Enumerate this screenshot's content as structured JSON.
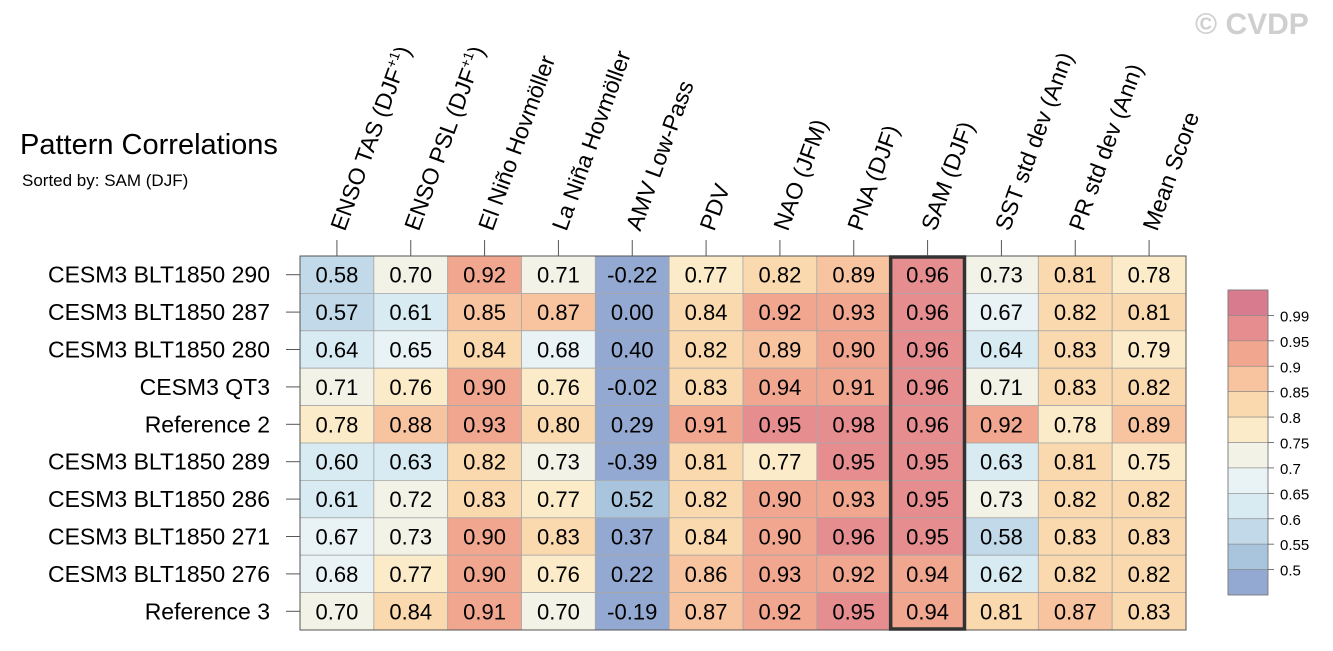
{
  "title": "Pattern Correlations",
  "subtitle": "Sorted by: SAM (DJF)",
  "watermark": "© CVDP",
  "chart_data": {
    "type": "heatmap",
    "columns": [
      "ENSO TAS (DJF+1)",
      "ENSO PSL (DJF+1)",
      "El Niño Hovmöller",
      "La Niña Hovmöller",
      "AMV Low-Pass",
      "PDV",
      "NAO (JFM)",
      "PNA (DJF)",
      "SAM (DJF)",
      "SST std dev (Ann)",
      "PR std dev (Ann)",
      "Mean Score"
    ],
    "highlighted_column": "SAM (DJF)",
    "rows": [
      {
        "label": "CESM3 BLT1850 290",
        "values": [
          "0.58",
          "0.70",
          "0.92",
          "0.71",
          "-0.22",
          "0.77",
          "0.82",
          "0.89",
          "0.96",
          "0.73",
          "0.81",
          "0.78"
        ]
      },
      {
        "label": "CESM3 BLT1850 287",
        "values": [
          "0.57",
          "0.61",
          "0.85",
          "0.87",
          "0.00",
          "0.84",
          "0.92",
          "0.93",
          "0.96",
          "0.67",
          "0.82",
          "0.81"
        ]
      },
      {
        "label": "CESM3 BLT1850 280",
        "values": [
          "0.64",
          "0.65",
          "0.84",
          "0.68",
          "0.40",
          "0.82",
          "0.89",
          "0.90",
          "0.96",
          "0.64",
          "0.83",
          "0.79"
        ]
      },
      {
        "label": "CESM3 QT3",
        "values": [
          "0.71",
          "0.76",
          "0.90",
          "0.76",
          "-0.02",
          "0.83",
          "0.94",
          "0.91",
          "0.96",
          "0.71",
          "0.83",
          "0.82"
        ]
      },
      {
        "label": "Reference 2",
        "values": [
          "0.78",
          "0.88",
          "0.93",
          "0.80",
          "0.29",
          "0.91",
          "0.95",
          "0.98",
          "0.96",
          "0.92",
          "0.78",
          "0.89"
        ]
      },
      {
        "label": "CESM3 BLT1850 289",
        "values": [
          "0.60",
          "0.63",
          "0.82",
          "0.73",
          "-0.39",
          "0.81",
          "0.77",
          "0.95",
          "0.95",
          "0.63",
          "0.81",
          "0.75"
        ]
      },
      {
        "label": "CESM3 BLT1850 286",
        "values": [
          "0.61",
          "0.72",
          "0.83",
          "0.77",
          "0.52",
          "0.82",
          "0.90",
          "0.93",
          "0.95",
          "0.73",
          "0.82",
          "0.82"
        ]
      },
      {
        "label": "CESM3 BLT1850 271",
        "values": [
          "0.67",
          "0.73",
          "0.90",
          "0.83",
          "0.37",
          "0.84",
          "0.90",
          "0.96",
          "0.95",
          "0.58",
          "0.83",
          "0.83"
        ]
      },
      {
        "label": "CESM3 BLT1850 276",
        "values": [
          "0.68",
          "0.77",
          "0.90",
          "0.76",
          "0.22",
          "0.86",
          "0.93",
          "0.92",
          "0.94",
          "0.62",
          "0.82",
          "0.82"
        ]
      },
      {
        "label": "Reference 3",
        "values": [
          "0.70",
          "0.84",
          "0.91",
          "0.70",
          "-0.19",
          "0.87",
          "0.92",
          "0.95",
          "0.94",
          "0.81",
          "0.87",
          "0.83"
        ]
      }
    ],
    "colorbar": {
      "labels": [
        "0.99",
        "0.95",
        "0.9",
        "0.85",
        "0.8",
        "0.75",
        "0.7",
        "0.65",
        "0.6",
        "0.55",
        "0.5"
      ],
      "thresholds": [
        0.5,
        0.55,
        0.6,
        0.65,
        0.7,
        0.75,
        0.8,
        0.85,
        0.9,
        0.95,
        0.99
      ],
      "colors": [
        "#94a9d1",
        "#a9c5de",
        "#c1d9e8",
        "#d8eaf2",
        "#e9f3f5",
        "#f3f2e6",
        "#fcebc8",
        "#fbd9ae",
        "#f8c4a0",
        "#f0a68f",
        "#e58d8f",
        "#d97b8f"
      ]
    }
  }
}
